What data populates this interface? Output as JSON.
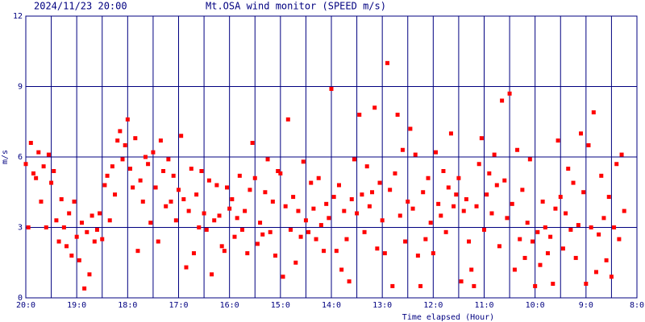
{
  "chart_data": {
    "type": "scatter",
    "title": "Mt.OSA wind monitor (SPEED m/s)",
    "subtitle": "2024/11/23 20:00",
    "xlabel": "Time elapsed (Hour)",
    "ylabel": "m/s",
    "xlim": [
      0,
      12
    ],
    "ylim": [
      0,
      12
    ],
    "xticks": [
      {
        "value": 0,
        "label": "20:0"
      },
      {
        "value": 1,
        "label": "19:0"
      },
      {
        "value": 2,
        "label": "18:0"
      },
      {
        "value": 3,
        "label": "17:0"
      },
      {
        "value": 4,
        "label": "16:0"
      },
      {
        "value": 5,
        "label": "15:0"
      },
      {
        "value": 6,
        "label": "14:0"
      },
      {
        "value": 7,
        "label": "13:0"
      },
      {
        "value": 8,
        "label": "12:0"
      },
      {
        "value": 9,
        "label": "11:0"
      },
      {
        "value": 10,
        "label": "10:0"
      },
      {
        "value": 11,
        "label": "9:0"
      },
      {
        "value": 12,
        "label": "8:0"
      }
    ],
    "xminorticks": [
      0.5,
      1.5,
      2.5,
      3.5,
      4.5,
      5.5,
      6.5,
      7.5,
      8.5,
      9.5,
      10.5,
      11.5
    ],
    "yticks": [
      0,
      3,
      6,
      9,
      12
    ],
    "grid": true,
    "grid_color": "#000080",
    "series": [
      {
        "color": "#ff0000",
        "x": [
          0.0,
          0.05,
          0.1,
          0.15,
          0.2,
          0.25,
          0.3,
          0.35,
          0.4,
          0.45,
          0.5,
          0.55,
          0.6,
          0.65,
          0.7,
          0.75,
          0.8,
          0.85,
          0.9,
          0.95,
          1.0,
          1.05,
          1.1,
          1.15,
          1.2,
          1.25,
          1.3,
          1.35,
          1.4,
          1.45,
          1.5,
          1.55,
          1.6,
          1.65,
          1.7,
          1.75,
          1.8,
          1.85,
          1.9,
          1.95,
          2.0,
          2.05,
          2.1,
          2.15,
          2.2,
          2.25,
          2.3,
          2.35,
          2.4,
          2.45,
          2.5,
          2.55,
          2.6,
          2.65,
          2.7,
          2.75,
          2.8,
          2.85,
          2.9,
          2.95,
          3.0,
          3.05,
          3.1,
          3.15,
          3.2,
          3.25,
          3.3,
          3.35,
          3.4,
          3.45,
          3.5,
          3.55,
          3.6,
          3.65,
          3.7,
          3.75,
          3.8,
          3.85,
          3.9,
          3.95,
          4.0,
          4.05,
          4.1,
          4.15,
          4.2,
          4.25,
          4.3,
          4.35,
          4.4,
          4.45,
          4.5,
          4.55,
          4.6,
          4.65,
          4.7,
          4.75,
          4.8,
          4.85,
          4.9,
          4.95,
          5.0,
          5.05,
          5.1,
          5.15,
          5.2,
          5.25,
          5.3,
          5.35,
          5.4,
          5.45,
          5.5,
          5.55,
          5.6,
          5.65,
          5.7,
          5.75,
          5.8,
          5.85,
          5.9,
          5.95,
          6.0,
          6.05,
          6.1,
          6.15,
          6.2,
          6.25,
          6.3,
          6.35,
          6.4,
          6.45,
          6.5,
          6.55,
          6.6,
          6.65,
          6.7,
          6.75,
          6.8,
          6.85,
          6.9,
          6.95,
          7.0,
          7.05,
          7.1,
          7.15,
          7.2,
          7.25,
          7.3,
          7.35,
          7.4,
          7.45,
          7.5,
          7.55,
          7.6,
          7.65,
          7.7,
          7.75,
          7.8,
          7.85,
          7.9,
          7.95,
          8.0,
          8.05,
          8.1,
          8.15,
          8.2,
          8.25,
          8.3,
          8.35,
          8.4,
          8.45,
          8.5,
          8.55,
          8.6,
          8.65,
          8.7,
          8.75,
          8.8,
          8.85,
          8.9,
          8.95,
          9.0,
          9.05,
          9.1,
          9.15,
          9.2,
          9.25,
          9.3,
          9.35,
          9.4,
          9.45,
          9.5,
          9.55,
          9.6,
          9.65,
          9.7,
          9.75,
          9.8,
          9.85,
          9.9,
          9.95,
          10.0,
          10.05,
          10.1,
          10.15,
          10.2,
          10.25,
          10.3,
          10.35,
          10.4,
          10.45,
          10.5,
          10.55,
          10.6,
          10.65,
          10.7,
          10.75,
          10.8,
          10.85,
          10.9,
          10.95,
          11.0,
          11.05,
          11.1,
          11.15,
          11.2,
          11.25,
          11.3,
          11.35,
          11.4,
          11.45,
          11.5,
          11.55,
          11.6,
          11.65,
          11.7,
          11.75
        ],
        "values": [
          5.7,
          3.0,
          6.6,
          5.3,
          5.1,
          6.2,
          4.1,
          5.6,
          3.0,
          6.1,
          4.9,
          5.4,
          3.3,
          2.4,
          4.2,
          3.0,
          2.2,
          3.6,
          1.8,
          4.1,
          2.6,
          1.6,
          3.2,
          0.4,
          2.8,
          1.0,
          3.5,
          2.4,
          2.9,
          3.6,
          2.5,
          4.8,
          5.2,
          3.3,
          5.6,
          4.4,
          6.7,
          7.1,
          5.9,
          6.5,
          7.6,
          5.5,
          4.7,
          6.8,
          2.0,
          5.0,
          4.1,
          6.0,
          5.7,
          3.2,
          6.2,
          4.7,
          2.4,
          6.7,
          5.4,
          3.9,
          5.9,
          4.1,
          5.2,
          3.3,
          4.6,
          6.9,
          4.2,
          1.3,
          3.7,
          5.5,
          1.9,
          4.4,
          3.0,
          5.4,
          3.6,
          2.9,
          5.0,
          1.0,
          3.3,
          4.8,
          3.5,
          2.2,
          2.0,
          4.7,
          3.8,
          4.2,
          2.6,
          3.4,
          5.2,
          2.9,
          3.7,
          1.9,
          4.6,
          6.6,
          5.1,
          2.3,
          3.2,
          2.7,
          4.5,
          5.9,
          2.8,
          4.1,
          1.8,
          5.4,
          5.3,
          0.9,
          3.9,
          7.6,
          2.9,
          4.3,
          1.5,
          3.7,
          2.6,
          5.8,
          3.3,
          2.8,
          4.9,
          3.8,
          2.5,
          5.1,
          3.1,
          2.0,
          4.0,
          3.4,
          8.9,
          4.3,
          2.0,
          4.8,
          1.2,
          3.7,
          2.5,
          0.7,
          4.2,
          5.9,
          3.6,
          7.8,
          4.4,
          2.8,
          5.6,
          3.9,
          4.5,
          8.1,
          2.1,
          4.9,
          3.3,
          1.9,
          10.0,
          4.6,
          0.5,
          5.3,
          7.8,
          3.5,
          6.3,
          2.4,
          4.1,
          7.2,
          3.8,
          6.1,
          1.8,
          0.5,
          4.5,
          2.5,
          5.1,
          3.2,
          1.9,
          6.2,
          4.0,
          3.5,
          5.4,
          2.8,
          4.7,
          7.0,
          3.9,
          4.4,
          5.1,
          0.7,
          3.7,
          4.2,
          2.4,
          1.2,
          0.5,
          3.9,
          5.7,
          6.8,
          2.9,
          4.4,
          5.3,
          3.6,
          6.1,
          4.8,
          2.2,
          8.4,
          5.0,
          3.4,
          8.7,
          4.0,
          1.2,
          6.3,
          2.5,
          4.6,
          1.7,
          3.2,
          5.9,
          2.4,
          0.5,
          2.8,
          1.4,
          4.1,
          3.0,
          1.9,
          2.6,
          0.6,
          3.8,
          6.7,
          4.3,
          2.1,
          3.6,
          5.5,
          2.9,
          4.9,
          1.7,
          3.1,
          7.0,
          4.5,
          0.6,
          6.5,
          3.0,
          7.9,
          1.1,
          2.7,
          5.2,
          3.4,
          1.6,
          4.3,
          0.9,
          3.0,
          5.7,
          2.5,
          6.1,
          3.7
        ]
      }
    ]
  }
}
